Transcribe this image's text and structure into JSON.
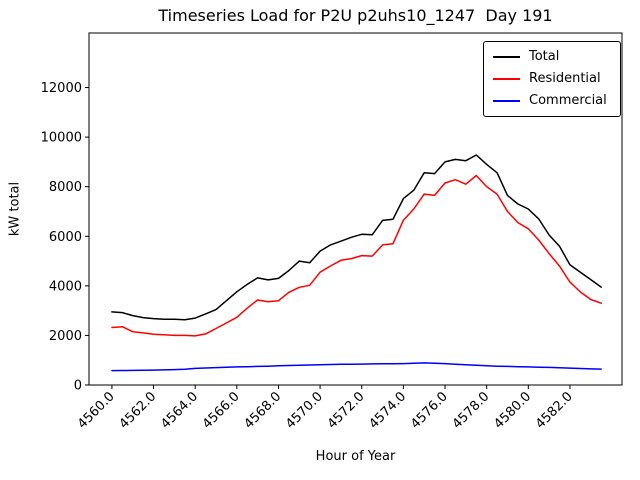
{
  "figure": {
    "background": "#ffffff"
  },
  "chart_data": {
    "type": "line",
    "title": "Timeseries Load for P2U p2uhs10_1247  Day 191",
    "xlabel": "Hour of Year",
    "ylabel": "kW total",
    "xlim": [
      4558.9,
      4584.5
    ],
    "ylim": [
      0,
      14200
    ],
    "grid": false,
    "legend_position": "upper right",
    "xtick_labels": [
      "4560.0",
      "4562.0",
      "4564.0",
      "4566.0",
      "4568.0",
      "4570.0",
      "4572.0",
      "4574.0",
      "4576.0",
      "4578.0",
      "4580.0",
      "4582.0"
    ],
    "ytick_labels": [
      "0",
      "2000",
      "4000",
      "6000",
      "8000",
      "10000",
      "12000"
    ],
    "x": [
      4560.0,
      4560.5,
      4561.0,
      4561.5,
      4562.0,
      4562.5,
      4563.0,
      4563.5,
      4564.0,
      4564.5,
      4565.0,
      4565.5,
      4566.0,
      4566.5,
      4567.0,
      4567.5,
      4568.0,
      4568.5,
      4569.0,
      4569.5,
      4570.0,
      4570.5,
      4571.0,
      4571.5,
      4572.0,
      4572.5,
      4573.0,
      4573.5,
      4574.0,
      4574.5,
      4575.0,
      4575.5,
      4576.0,
      4576.5,
      4577.0,
      4577.5,
      4578.0,
      4578.5,
      4579.0,
      4579.5,
      4580.0,
      4580.5,
      4581.0,
      4581.5,
      4582.0,
      4582.5,
      4583.0,
      4583.5
    ],
    "series": [
      {
        "name": "Total",
        "color": "#000000",
        "values": [
          2950,
          2920,
          2800,
          2720,
          2680,
          2650,
          2650,
          2630,
          2700,
          2870,
          3040,
          3400,
          3760,
          4060,
          4320,
          4240,
          4300,
          4620,
          5000,
          4930,
          5400,
          5650,
          5800,
          5960,
          6080,
          6060,
          6640,
          6690,
          7520,
          7860,
          8560,
          8530,
          9000,
          9100,
          9050,
          9280,
          8900,
          8560,
          7650,
          7300,
          7100,
          6700,
          6050,
          5600,
          4850,
          4550,
          4250,
          3950
        ]
      },
      {
        "name": "Residential",
        "color": "#ff0000",
        "values": [
          2320,
          2350,
          2150,
          2100,
          2050,
          2030,
          2000,
          2000,
          1980,
          2060,
          2280,
          2500,
          2730,
          3100,
          3430,
          3360,
          3400,
          3740,
          3940,
          4020,
          4550,
          4800,
          5030,
          5100,
          5220,
          5200,
          5650,
          5700,
          6650,
          7100,
          7700,
          7650,
          8150,
          8280,
          8100,
          8450,
          8000,
          7700,
          7000,
          6550,
          6300,
          5850,
          5300,
          4800,
          4150,
          3750,
          3450,
          3300
        ]
      },
      {
        "name": "Commercial",
        "color": "#0000ff",
        "values": [
          580,
          585,
          590,
          595,
          600,
          610,
          620,
          635,
          670,
          685,
          700,
          715,
          730,
          740,
          750,
          760,
          775,
          785,
          795,
          805,
          815,
          825,
          835,
          840,
          845,
          850,
          855,
          860,
          865,
          875,
          890,
          880,
          865,
          840,
          820,
          795,
          775,
          760,
          750,
          740,
          730,
          720,
          710,
          695,
          680,
          665,
          650,
          640
        ]
      }
    ]
  }
}
